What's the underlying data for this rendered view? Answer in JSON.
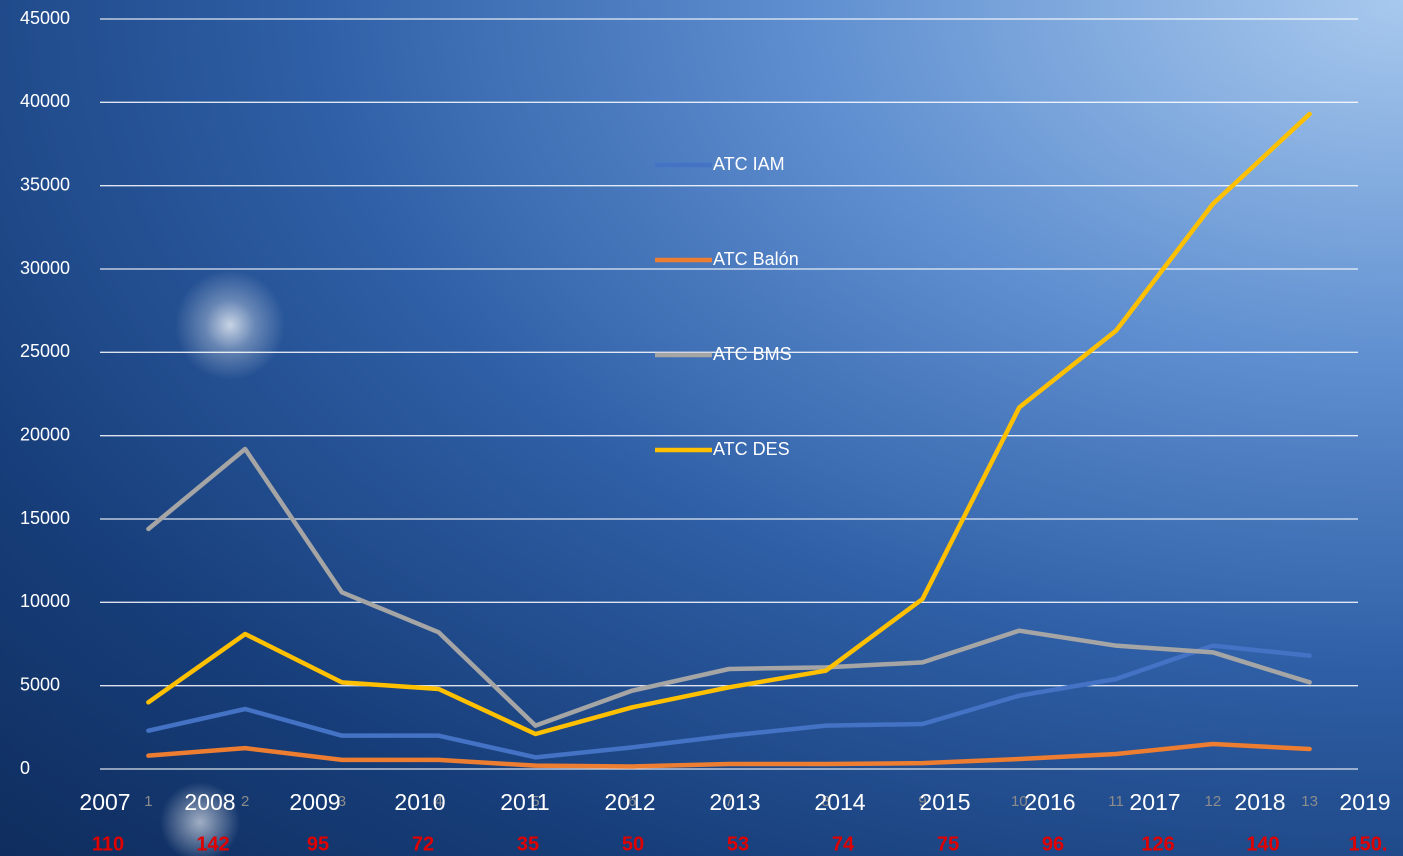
{
  "chart_data": {
    "type": "line",
    "categories": [
      "1",
      "2",
      "3",
      "4",
      "5",
      "6",
      "7",
      "8",
      "9",
      "10",
      "11",
      "12",
      "13"
    ],
    "year_labels": [
      "2007",
      "2008",
      "2009",
      "2010",
      "2011",
      "2012",
      "2013",
      "2014",
      "2015",
      "2016",
      "2017",
      "2018",
      "2019"
    ],
    "count_labels": [
      "110",
      "142",
      "95",
      "72",
      "35",
      "50",
      "53",
      "74",
      "75",
      "96",
      "126",
      "140",
      "150."
    ],
    "series": [
      {
        "name": "ATC IAM",
        "color": "#4472c4",
        "values": [
          2300,
          3600,
          2000,
          2000,
          700,
          1300,
          2000,
          2600,
          2700,
          4400,
          5400,
          7400,
          6800
        ]
      },
      {
        "name": "ATC Balón",
        "color": "#ed7d31",
        "values": [
          800,
          1250,
          550,
          550,
          200,
          150,
          300,
          300,
          350,
          600,
          900,
          1500,
          1200
        ]
      },
      {
        "name": "ATC BMS",
        "color": "#a5a5a5",
        "values": [
          14400,
          19200,
          10600,
          8200,
          2600,
          4700,
          6000,
          6100,
          6400,
          8300,
          7400,
          7000,
          5200
        ]
      },
      {
        "name": "ATC DES",
        "color": "#ffc000",
        "values": [
          4000,
          8100,
          5200,
          4800,
          2100,
          3700,
          4900,
          5900,
          10200,
          21700,
          26300,
          33900,
          39300
        ]
      }
    ],
    "ylim": [
      0,
      45000
    ],
    "yticks": [
      0,
      5000,
      10000,
      15000,
      20000,
      25000,
      30000,
      35000,
      40000,
      45000
    ],
    "grid": true
  }
}
